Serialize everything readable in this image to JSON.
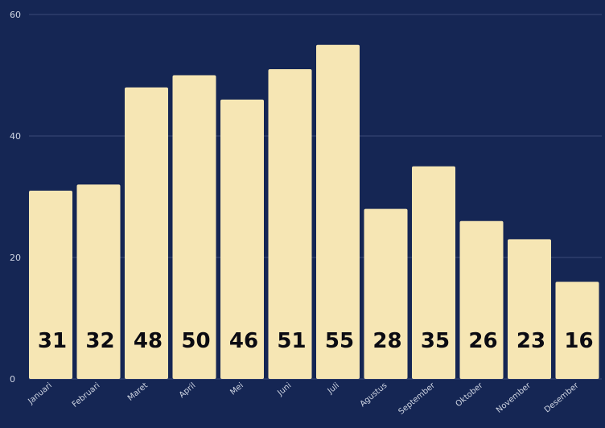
{
  "chart_data": {
    "type": "bar",
    "categories": [
      "Januari",
      "Februari",
      "Maret",
      "April",
      "Mei",
      "Juni",
      "Juli",
      "Agustus",
      "September",
      "Oktober",
      "November",
      "Desember"
    ],
    "values": [
      31,
      32,
      48,
      50,
      46,
      51,
      55,
      28,
      35,
      26,
      23,
      16
    ],
    "yticks": [
      0,
      20,
      40,
      60
    ],
    "ylim": [
      0,
      60
    ],
    "grid": true,
    "bar_color": "#f6e6b4",
    "background_color": "#152654",
    "grid_color": "#3a4a78"
  }
}
